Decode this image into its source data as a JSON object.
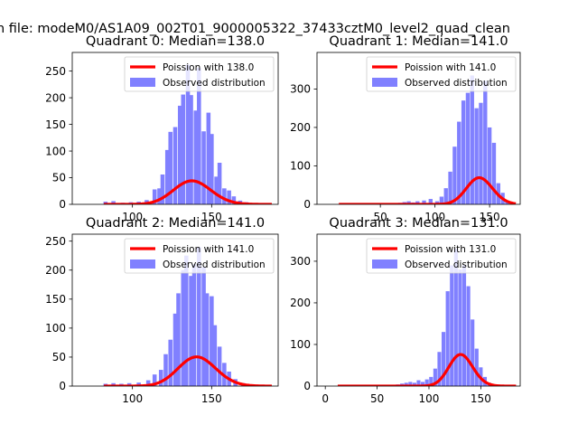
{
  "figure": {
    "suptitle": "n file: modeM0/AS1A09_002T01_9000005322_37433cztM0_level2_quad_clean"
  },
  "colors": {
    "poisson_line": "#ff0000",
    "observed_bars": "#8080ff",
    "axes": "#000000"
  },
  "chart_data": [
    {
      "type": "bar",
      "title": "Quadrant 0: Median=138.0",
      "xlabel": "",
      "ylabel": "",
      "xlim": [
        62,
        192
      ],
      "ylim": [
        0,
        285
      ],
      "x_ticks": [
        100,
        150
      ],
      "y_ticks": [
        0,
        50,
        100,
        150,
        200,
        250
      ],
      "legend_position": "upper right",
      "bin_width": 2.6,
      "series": [
        {
          "name": "Observed distribution",
          "bin_centers": [
            83,
            88,
            94,
            99,
            104,
            109,
            114,
            117,
            119,
            122,
            124,
            127,
            130,
            132,
            135,
            137,
            140,
            142,
            145,
            148,
            150,
            153,
            155,
            158,
            161,
            164,
            168,
            172
          ],
          "counts": [
            5,
            6,
            3,
            4,
            5,
            8,
            28,
            30,
            56,
            102,
            136,
            145,
            185,
            206,
            262,
            205,
            176,
            256,
            137,
            172,
            132,
            52,
            78,
            30,
            26,
            15,
            7,
            4
          ]
        },
        {
          "name": "Poission with 138.0",
          "mean": 138.0,
          "scale": 1300
        }
      ]
    },
    {
      "type": "bar",
      "title": "Quadrant 1: Median=141.0",
      "xlabel": "",
      "ylabel": "",
      "xlim": [
        -8,
        178
      ],
      "ylim": [
        0,
        395
      ],
      "x_ticks": [
        50,
        100,
        150
      ],
      "y_ticks": [
        0,
        100,
        200,
        300
      ],
      "legend_position": "upper right",
      "bin_width": 3.6,
      "series": [
        {
          "name": "Observed distribution",
          "bin_centers": [
            64,
            68,
            72,
            76,
            80,
            84,
            90,
            96,
            102,
            106,
            110,
            114,
            118,
            122,
            126,
            130,
            134,
            138,
            142,
            146,
            150,
            154,
            158,
            162,
            166
          ],
          "counts": [
            3,
            4,
            6,
            8,
            5,
            8,
            10,
            14,
            8,
            20,
            42,
            85,
            150,
            215,
            270,
            290,
            335,
            250,
            264,
            321,
            200,
            160,
            55,
            30,
            8
          ]
        },
        {
          "name": "Poission with 141.0",
          "mean": 141.0,
          "scale": 2060
        }
      ]
    },
    {
      "type": "bar",
      "title": "Quadrant 2: Median=141.0",
      "xlabel": "",
      "ylabel": "",
      "xlim": [
        62,
        192
      ],
      "ylim": [
        0,
        262
      ],
      "x_ticks": [
        100,
        150
      ],
      "y_ticks": [
        0,
        50,
        100,
        150,
        200,
        250
      ],
      "legend_position": "upper right",
      "bin_width": 2.6,
      "series": [
        {
          "name": "Observed distribution",
          "bin_centers": [
            83,
            88,
            93,
            98,
            104,
            110,
            114,
            118,
            121,
            124,
            127,
            129,
            132,
            134,
            137,
            139,
            142,
            145,
            147,
            150,
            152,
            155,
            158,
            161,
            165,
            170
          ],
          "counts": [
            4,
            5,
            4,
            5,
            6,
            10,
            20,
            28,
            55,
            80,
            125,
            160,
            200,
            225,
            190,
            210,
            240,
            205,
            160,
            155,
            105,
            68,
            40,
            25,
            12,
            5
          ]
        },
        {
          "name": "Poission with 141.0",
          "mean": 141.0,
          "scale": 1500
        }
      ]
    },
    {
      "type": "bar",
      "title": "Quadrant 3: Median=131.0",
      "xlabel": "",
      "ylabel": "",
      "xlim": [
        -8,
        188
      ],
      "ylim": [
        0,
        365
      ],
      "x_ticks": [
        0,
        50,
        100,
        150
      ],
      "y_ticks": [
        0,
        100,
        200,
        300
      ],
      "legend_position": "upper right",
      "bin_width": 3.6,
      "series": [
        {
          "name": "Observed distribution",
          "bin_centers": [
            70,
            74,
            78,
            82,
            86,
            90,
            94,
            98,
            102,
            106,
            110,
            114,
            118,
            122,
            126,
            130,
            134,
            138,
            142,
            146,
            150,
            154,
            158
          ],
          "counts": [
            4,
            6,
            8,
            10,
            8,
            14,
            10,
            16,
            22,
            42,
            82,
            130,
            228,
            290,
            330,
            280,
            290,
            240,
            160,
            90,
            45,
            22,
            8
          ]
        },
        {
          "name": "Poission with 131.0",
          "mean": 131.0,
          "scale": 2180
        }
      ]
    }
  ]
}
